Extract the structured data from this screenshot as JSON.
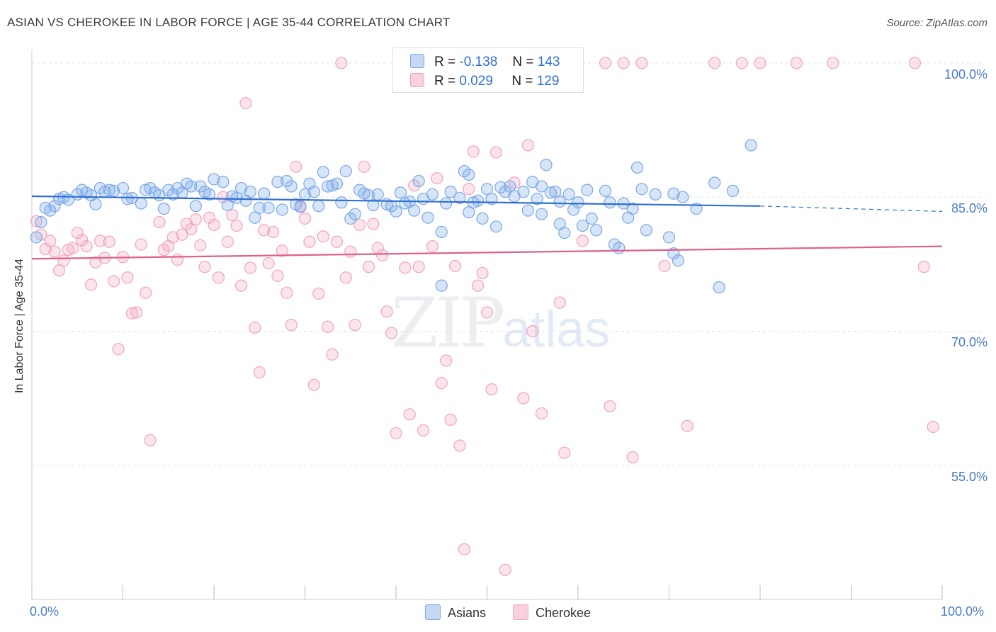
{
  "title": "ASIAN VS CHEROKEE IN LABOR FORCE | AGE 35-44 CORRELATION CHART",
  "source": "Source: ZipAtlas.com",
  "watermark": {
    "zip": "ZIP",
    "atlas": "atlas"
  },
  "legend": {
    "asians": {
      "r_label": "R =",
      "r_value": "-0.138",
      "n_label": "N =",
      "n_value": "143"
    },
    "cherokee": {
      "r_label": "R =",
      "r_value": "0.029",
      "n_label": "N =",
      "n_value": "129"
    }
  },
  "chart_data": {
    "type": "scatter",
    "title": "ASIAN VS CHEROKEE IN LABOR FORCE | AGE 35-44 CORRELATION CHART",
    "xlabel": "",
    "ylabel": "In Labor Force | Age 35-44",
    "xlim": [
      0,
      100
    ],
    "ylim": [
      40,
      101.5
    ],
    "x_tick_labels": [
      "0.0%",
      "100.0%"
    ],
    "y_ticks": [
      {
        "value": 100,
        "label": "100.0%"
      },
      {
        "value": 85,
        "label": "85.0%"
      },
      {
        "value": 70,
        "label": "70.0%"
      },
      {
        "value": 55,
        "label": "55.0%"
      }
    ],
    "grid": true,
    "legend_position": "top-center",
    "series": [
      {
        "name": "Asians",
        "color": "#7aa8e8",
        "line_color": "#2f6fd1",
        "trend": {
          "x0": 0,
          "y0": 85.1,
          "x1": 80,
          "y1": 84.0,
          "dashed_to": 100,
          "dashed_y": 83.4
        },
        "points": [
          [
            0.5,
            80.5
          ],
          [
            1,
            82.2
          ],
          [
            1.5,
            83.8
          ],
          [
            2,
            83.5
          ],
          [
            2.5,
            84
          ],
          [
            3,
            84.8
          ],
          [
            3.5,
            85
          ],
          [
            4,
            84.7
          ],
          [
            5,
            85.3
          ],
          [
            5.5,
            85.8
          ],
          [
            6,
            85.5
          ],
          [
            6.5,
            85.2
          ],
          [
            7,
            84.2
          ],
          [
            7.5,
            86
          ],
          [
            8,
            85.6
          ],
          [
            8.5,
            85.8
          ],
          [
            9,
            85.7
          ],
          [
            10,
            86
          ],
          [
            10.5,
            84.8
          ],
          [
            11,
            84.9
          ],
          [
            12,
            84.3
          ],
          [
            12.5,
            85.8
          ],
          [
            13,
            86
          ],
          [
            13.5,
            85.5
          ],
          [
            14,
            85.2
          ],
          [
            14.5,
            83.7
          ],
          [
            15,
            85.8
          ],
          [
            15.5,
            85.3
          ],
          [
            16,
            86
          ],
          [
            16.5,
            85.5
          ],
          [
            17,
            86.5
          ],
          [
            17.5,
            86.2
          ],
          [
            18,
            84
          ],
          [
            18.5,
            86.2
          ],
          [
            19,
            85.6
          ],
          [
            19.5,
            85.3
          ],
          [
            20,
            87
          ],
          [
            21,
            86.7
          ],
          [
            21.5,
            84.1
          ],
          [
            22,
            85.1
          ],
          [
            22.5,
            84.9
          ],
          [
            23,
            86
          ],
          [
            23.5,
            84.6
          ],
          [
            24,
            85.6
          ],
          [
            24.5,
            82.7
          ],
          [
            25,
            83.8
          ],
          [
            25.5,
            85.4
          ],
          [
            26,
            83.8
          ],
          [
            27,
            86.7
          ],
          [
            27.5,
            83.6
          ],
          [
            28,
            86.8
          ],
          [
            28.5,
            86.2
          ],
          [
            29,
            84.2
          ],
          [
            29.5,
            83.9
          ],
          [
            30,
            85.3
          ],
          [
            30.5,
            86.5
          ],
          [
            31,
            85.6
          ],
          [
            31.5,
            84
          ],
          [
            32,
            87.8
          ],
          [
            32.5,
            86.2
          ],
          [
            33,
            86.3
          ],
          [
            33.5,
            86.5
          ],
          [
            34,
            84.4
          ],
          [
            34.5,
            87.9
          ],
          [
            35,
            82.6
          ],
          [
            35.5,
            83.1
          ],
          [
            36,
            85.8
          ],
          [
            36.5,
            85.4
          ],
          [
            37,
            85.2
          ],
          [
            37.5,
            84.1
          ],
          [
            38,
            85.3
          ],
          [
            39,
            84.2
          ],
          [
            39.5,
            84
          ],
          [
            40,
            83.4
          ],
          [
            40.5,
            85.5
          ],
          [
            41,
            84.3
          ],
          [
            41.5,
            84.5
          ],
          [
            42,
            83.5
          ],
          [
            42.5,
            86.8
          ],
          [
            43,
            84.8
          ],
          [
            43.5,
            82.7
          ],
          [
            44,
            85.3
          ],
          [
            45,
            81.1
          ],
          [
            45.5,
            84.3
          ],
          [
            46,
            85.6
          ],
          [
            47,
            84.9
          ],
          [
            47.5,
            87.9
          ],
          [
            48,
            87.5
          ],
          [
            48.5,
            84.4
          ],
          [
            49,
            84.6
          ],
          [
            49.5,
            82.6
          ],
          [
            50,
            85.9
          ],
          [
            50.5,
            84.8
          ],
          [
            51,
            81.7
          ],
          [
            51.5,
            86.1
          ],
          [
            52,
            85.6
          ],
          [
            52.5,
            86.2
          ],
          [
            53,
            85.1
          ],
          [
            54,
            85.6
          ],
          [
            54.5,
            83.5
          ],
          [
            55,
            86.7
          ],
          [
            55.5,
            84.8
          ],
          [
            56,
            83.1
          ],
          [
            56.5,
            88.6
          ],
          [
            57,
            85.5
          ],
          [
            57.5,
            85.6
          ],
          [
            58,
            82
          ],
          [
            58.5,
            81
          ],
          [
            59,
            85.3
          ],
          [
            59.5,
            83.6
          ],
          [
            60,
            84.4
          ],
          [
            60.5,
            81.8
          ],
          [
            61,
            85.8
          ],
          [
            61.5,
            82.6
          ],
          [
            62,
            81.3
          ],
          [
            63,
            85.7
          ],
          [
            63.5,
            84.4
          ],
          [
            64,
            79.7
          ],
          [
            64.5,
            79.3
          ],
          [
            65,
            84.3
          ],
          [
            65.5,
            82.7
          ],
          [
            66,
            83.7
          ],
          [
            66.5,
            88.3
          ],
          [
            67,
            85.9
          ],
          [
            67.5,
            81.3
          ],
          [
            68.5,
            85.3
          ],
          [
            70,
            80.5
          ],
          [
            70.5,
            78.7
          ],
          [
            71,
            77.9
          ],
          [
            71.5,
            85
          ],
          [
            73,
            83.7
          ],
          [
            75,
            86.6
          ],
          [
            77,
            85.7
          ],
          [
            79,
            90.8
          ],
          [
            75.5,
            74.9
          ],
          [
            45,
            75.1
          ],
          [
            70.5,
            85.4
          ],
          [
            56,
            86.2
          ],
          [
            58,
            84.5
          ],
          [
            48,
            83.3
          ]
        ]
      },
      {
        "name": "Cherokee",
        "color": "#f2a4bf",
        "line_color": "#e0608d",
        "trend": {
          "x0": 0,
          "y0": 78.1,
          "x1": 100,
          "y1": 79.5
        },
        "points": [
          [
            0.5,
            82.3
          ],
          [
            1,
            80.8
          ],
          [
            1.5,
            79.2
          ],
          [
            2,
            80.1
          ],
          [
            2.5,
            78.9
          ],
          [
            3,
            76.8
          ],
          [
            3.5,
            77.9
          ],
          [
            4,
            79.1
          ],
          [
            4.5,
            79.3
          ],
          [
            5,
            81
          ],
          [
            5.5,
            80.2
          ],
          [
            6,
            79.5
          ],
          [
            6.5,
            75.2
          ],
          [
            7,
            77.7
          ],
          [
            7.5,
            80.1
          ],
          [
            8,
            78.2
          ],
          [
            8.5,
            80
          ],
          [
            9,
            75.6
          ],
          [
            9.5,
            68
          ],
          [
            10,
            78.3
          ],
          [
            10.5,
            76
          ],
          [
            11,
            72
          ],
          [
            11.5,
            72.1
          ],
          [
            12,
            79.7
          ],
          [
            12.5,
            74.3
          ],
          [
            13,
            57.8
          ],
          [
            14,
            82.2
          ],
          [
            14.5,
            79.1
          ],
          [
            15,
            79.5
          ],
          [
            15.5,
            80.5
          ],
          [
            16,
            78
          ],
          [
            16.5,
            80.8
          ],
          [
            17,
            82
          ],
          [
            17.5,
            81.4
          ],
          [
            18,
            82.5
          ],
          [
            18.5,
            79.6
          ],
          [
            19,
            77.2
          ],
          [
            19.5,
            82.7
          ],
          [
            20,
            81.9
          ],
          [
            20.5,
            76
          ],
          [
            21,
            85
          ],
          [
            21.5,
            80
          ],
          [
            22,
            83
          ],
          [
            22.5,
            81.8
          ],
          [
            23,
            75.1
          ],
          [
            23.5,
            95.5
          ],
          [
            24,
            77.1
          ],
          [
            24.5,
            70.4
          ],
          [
            25,
            65.4
          ],
          [
            25.5,
            81.3
          ],
          [
            26,
            77.6
          ],
          [
            26.5,
            81.1
          ],
          [
            27,
            76.2
          ],
          [
            27.5,
            79
          ],
          [
            28,
            74.3
          ],
          [
            28.5,
            70.7
          ],
          [
            29,
            88.4
          ],
          [
            29.5,
            84
          ],
          [
            30,
            82.6
          ],
          [
            30.5,
            80
          ],
          [
            31,
            64
          ],
          [
            31.5,
            74.2
          ],
          [
            32,
            80.6
          ],
          [
            32.5,
            70.5
          ],
          [
            33,
            67.4
          ],
          [
            33.5,
            80
          ],
          [
            34,
            100
          ],
          [
            34.5,
            76
          ],
          [
            35,
            78.9
          ],
          [
            35.5,
            70.7
          ],
          [
            36,
            81.9
          ],
          [
            36.5,
            88.4
          ],
          [
            37,
            77.2
          ],
          [
            37.5,
            82
          ],
          [
            38,
            79.3
          ],
          [
            38.5,
            78.5
          ],
          [
            39,
            72.2
          ],
          [
            39.5,
            69.8
          ],
          [
            40,
            58.6
          ],
          [
            41,
            77.1
          ],
          [
            41.5,
            60.7
          ],
          [
            42,
            86.3
          ],
          [
            42.5,
            77.2
          ],
          [
            43,
            58.9
          ],
          [
            44,
            79.5
          ],
          [
            44.5,
            87.1
          ],
          [
            45,
            64.2
          ],
          [
            45.5,
            66.7
          ],
          [
            46,
            60.1
          ],
          [
            46.5,
            77.3
          ],
          [
            47,
            57.2
          ],
          [
            47.5,
            45.6
          ],
          [
            48,
            85.9
          ],
          [
            48.5,
            90.1
          ],
          [
            49,
            75.1
          ],
          [
            49.5,
            76.5
          ],
          [
            50,
            72.1
          ],
          [
            50.5,
            63.5
          ],
          [
            51,
            90
          ],
          [
            51.5,
            100
          ],
          [
            52,
            43.3
          ],
          [
            53,
            86.6
          ],
          [
            54,
            62.5
          ],
          [
            54.5,
            90.8
          ],
          [
            55,
            70
          ],
          [
            56,
            60.8
          ],
          [
            56.5,
            100
          ],
          [
            57,
            100
          ],
          [
            58,
            73.2
          ],
          [
            58.5,
            56.4
          ],
          [
            60,
            100
          ],
          [
            60.5,
            80.1
          ],
          [
            63,
            100
          ],
          [
            63.5,
            61.6
          ],
          [
            65,
            100
          ],
          [
            66,
            55.9
          ],
          [
            67,
            100
          ],
          [
            69.5,
            77.3
          ],
          [
            72,
            59.4
          ],
          [
            75,
            100
          ],
          [
            78,
            100
          ],
          [
            80,
            100
          ],
          [
            84,
            100
          ],
          [
            88,
            100
          ],
          [
            97,
            100
          ],
          [
            98,
            77.2
          ],
          [
            99,
            59.3
          ]
        ]
      }
    ]
  }
}
